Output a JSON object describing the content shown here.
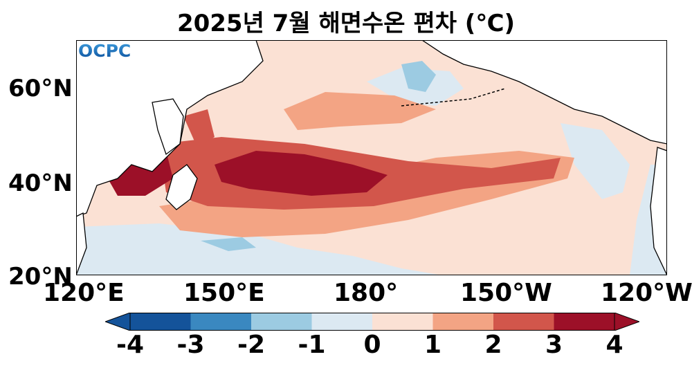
{
  "title": "2025년 7월 해면수온 편차 (℃)",
  "logo_text": "OCPC",
  "map": {
    "extent_lon": [
      120,
      245
    ],
    "extent_lat": [
      20,
      70
    ],
    "lat_labels": [
      "60°N",
      "40°N",
      "20°N"
    ],
    "lon_labels": [
      "120°E",
      "150°E",
      "180°",
      "150°W",
      "120°W"
    ]
  },
  "colorbar": {
    "levels": [
      -4,
      -3,
      -2,
      -1,
      0,
      1,
      2,
      3,
      4
    ],
    "tick_labels": [
      "-4",
      "-3",
      "-2",
      "-1",
      "0",
      "1",
      "2",
      "3",
      "4"
    ],
    "colors": [
      "#14539a",
      "#3a88c0",
      "#9ccbe2",
      "#dce9f2",
      "#fbe1d4",
      "#f3a484",
      "#d2564b",
      "#9c1028"
    ],
    "extend": "both"
  }
}
